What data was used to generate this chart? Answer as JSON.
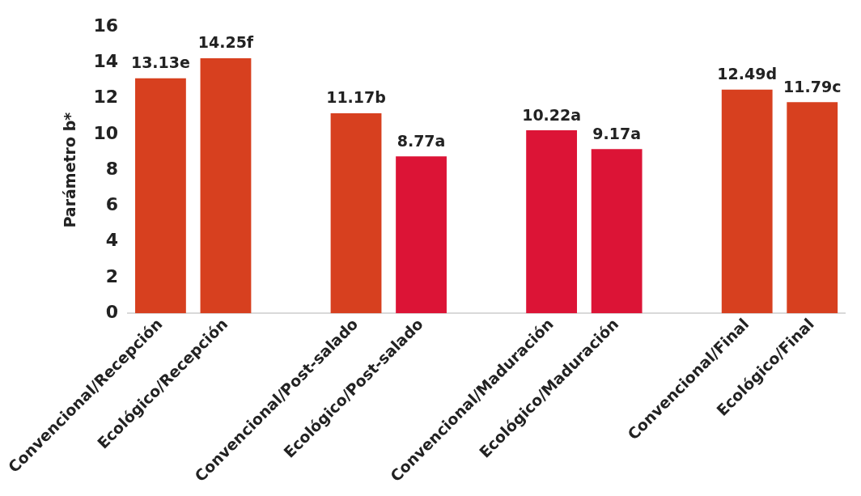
{
  "chart_data": {
    "type": "bar",
    "ylabel": "Parámetro b*",
    "categories": [
      "Convencional/Recepción",
      "Ecológico/Recepción",
      null,
      "Convencional/Post-salado",
      "Ecológico/Post-salado",
      null,
      "Convencional/Maduración",
      "Ecológico/Maduración",
      null,
      "Convencional/Final",
      "Ecológico/Final"
    ],
    "values": [
      13.13,
      14.25,
      null,
      11.17,
      8.77,
      null,
      10.22,
      9.17,
      null,
      12.49,
      11.79
    ],
    "colors": [
      "#d7401f",
      "#d7401f",
      "#d7401f",
      "#d7401f",
      "#dc1436",
      "#d7401f",
      "#dc1436",
      "#dc1436",
      "#d7401f",
      "#d7401f",
      "#d7401f"
    ],
    "value_labels": [
      "13.13e",
      "14.25f",
      null,
      "11.17b",
      "8.77a",
      null,
      "10.22a",
      "9.17a",
      null,
      "12.49d",
      "11.79c"
    ],
    "ylim": [
      0,
      16
    ],
    "yticks": [
      0,
      2,
      4,
      6,
      8,
      10,
      12,
      14,
      16
    ],
    "grid": false,
    "legend": false
  }
}
